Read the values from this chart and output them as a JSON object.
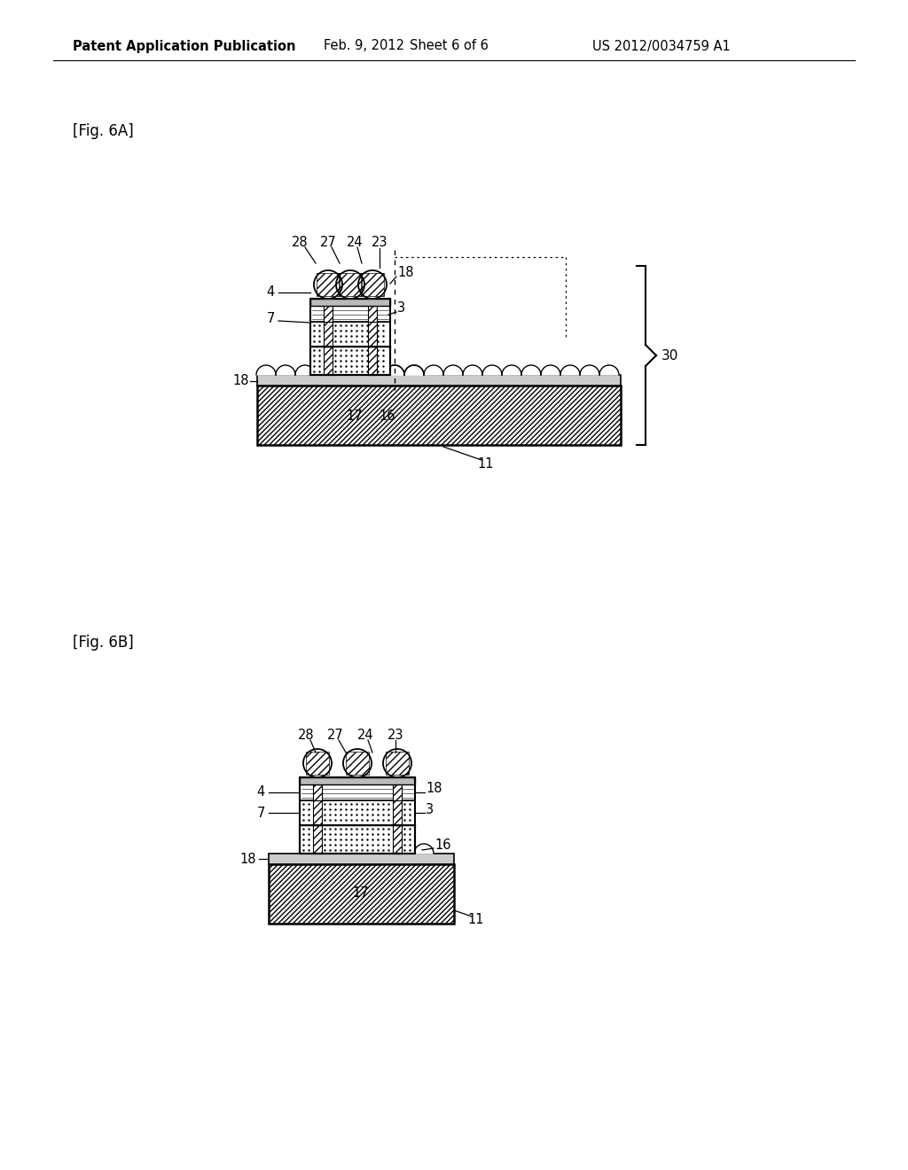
{
  "bg_color": "#ffffff",
  "header_left": "Patent Application Publication",
  "header_mid1": "Feb. 9, 2012",
  "header_mid2": "Sheet 6 of 6",
  "header_right": "US 2012/0034759 A1",
  "fig_a_label": "[Fig. 6A]",
  "fig_b_label": "[Fig. 6B]",
  "line_color": "#000000"
}
